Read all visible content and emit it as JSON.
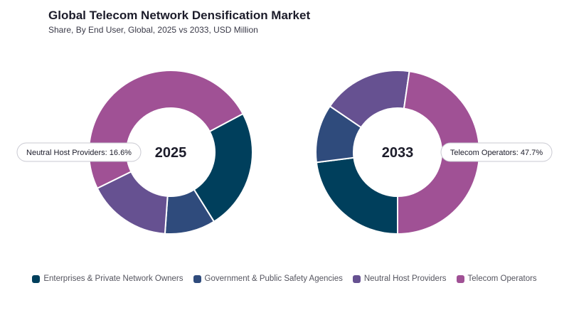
{
  "title": "Global Telecom Network Densification Market",
  "subtitle": "Share, By End User, Global, 2025 vs 2033, USD Million",
  "chart_data": [
    {
      "type": "pie",
      "variant": "donut",
      "center_label": "2025",
      "categories": [
        "Enterprises & Private Network Owners",
        "Government & Public Safety Agencies",
        "Neutral Host Providers",
        "Telecom Operators"
      ],
      "values": [
        23.9,
        10.0,
        16.6,
        49.5
      ],
      "colors": [
        "#003f5c",
        "#2f4b7c",
        "#665191",
        "#a05195"
      ],
      "callout": {
        "text": "Neutral Host Providers: 16.6%",
        "index": 2,
        "side": "left"
      }
    },
    {
      "type": "pie",
      "variant": "donut",
      "center_label": "2033",
      "categories": [
        "Enterprises & Private Network Owners",
        "Government & Public Safety Agencies",
        "Neutral Host Providers",
        "Telecom Operators"
      ],
      "values": [
        23.0,
        11.5,
        17.8,
        47.7
      ],
      "colors": [
        "#003f5c",
        "#2f4b7c",
        "#665191",
        "#a05195"
      ],
      "callout": {
        "text": "Telecom Operators: 47.7%",
        "index": 3,
        "side": "right"
      }
    }
  ],
  "legend": [
    {
      "label": "Enterprises & Private Network Owners",
      "color": "#003f5c"
    },
    {
      "label": "Government & Public Safety Agencies",
      "color": "#2f4b7c"
    },
    {
      "label": "Neutral Host Providers",
      "color": "#665191"
    },
    {
      "label": "Telecom Operators",
      "color": "#a05195"
    }
  ]
}
